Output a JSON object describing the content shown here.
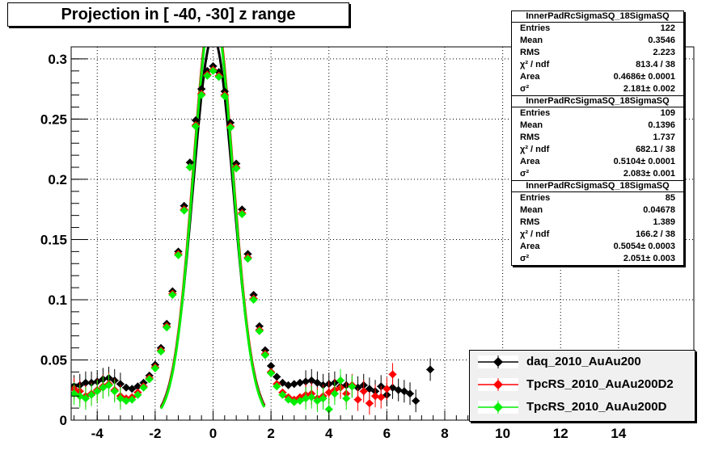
{
  "title": "Projection in [ -40, -30] z range",
  "chart_data": {
    "type": "scatter",
    "title": "Projection in [ -40, -30] z range",
    "xlabel": "",
    "ylabel": "",
    "xlim": [
      -4.9,
      16.6
    ],
    "ylim": [
      0,
      0.31
    ],
    "x_ticks": [
      -4,
      -2,
      0,
      2,
      4,
      6,
      8,
      10,
      12,
      14
    ],
    "y_ticks": [
      0,
      0.05,
      0.1,
      0.15,
      0.2,
      0.25,
      0.3
    ],
    "x_tick_labels": [
      "-4",
      "-2",
      "0",
      "2",
      "4",
      "6",
      "8",
      "10",
      "12",
      "14"
    ],
    "y_tick_labels": [
      "0",
      "0.05",
      "0.1",
      "0.15",
      "0.2",
      "0.25",
      "0.3"
    ],
    "grid": true,
    "legend_position": "bottom-right",
    "series": [
      {
        "name": "daq_2010_AuAu200",
        "color": "#000000",
        "x": [
          -4.8,
          -4.6,
          -4.4,
          -4.2,
          -4.0,
          -3.8,
          -3.6,
          -3.4,
          -3.2,
          -3.0,
          -2.8,
          -2.6,
          -2.4,
          -2.2,
          -2.0,
          -1.8,
          -1.6,
          -1.4,
          -1.2,
          -1.0,
          -0.8,
          -0.6,
          -0.4,
          -0.2,
          0.0,
          0.2,
          0.4,
          0.6,
          0.8,
          1.0,
          1.2,
          1.4,
          1.6,
          1.8,
          2.0,
          2.2,
          2.4,
          2.6,
          2.8,
          3.0,
          3.2,
          3.4,
          3.6,
          3.8,
          4.0,
          4.2,
          4.4,
          4.6,
          4.8,
          5.0,
          5.2,
          5.4,
          5.6,
          5.8,
          6.0,
          6.2,
          6.4,
          6.6,
          6.8,
          7.0,
          7.5
        ],
        "y": [
          0.028,
          0.029,
          0.031,
          0.031,
          0.032,
          0.034,
          0.035,
          0.033,
          0.03,
          0.027,
          0.026,
          0.028,
          0.031,
          0.037,
          0.046,
          0.06,
          0.08,
          0.107,
          0.14,
          0.178,
          0.214,
          0.249,
          0.275,
          0.29,
          0.294,
          0.289,
          0.273,
          0.247,
          0.213,
          0.175,
          0.138,
          0.104,
          0.078,
          0.058,
          0.045,
          0.036,
          0.031,
          0.029,
          0.03,
          0.031,
          0.032,
          0.033,
          0.031,
          0.029,
          0.03,
          0.031,
          0.028,
          0.029,
          0.028,
          0.027,
          0.029,
          0.026,
          0.024,
          0.028,
          0.021,
          0.027,
          0.025,
          0.024,
          0.022,
          0.016,
          0.042
        ]
      },
      {
        "name": "TpcRS_2010_AuAu200D2",
        "color": "#ff0000",
        "x": [
          -4.8,
          -4.6,
          -4.4,
          -4.2,
          -4.0,
          -3.8,
          -3.6,
          -3.4,
          -3.2,
          -3.0,
          -2.8,
          -2.6,
          -2.4,
          -2.2,
          -2.0,
          -1.8,
          -1.6,
          -1.4,
          -1.2,
          -1.0,
          -0.8,
          -0.6,
          -0.4,
          -0.2,
          0.0,
          0.2,
          0.4,
          0.6,
          0.8,
          1.0,
          1.2,
          1.4,
          1.6,
          1.8,
          2.0,
          2.2,
          2.4,
          2.6,
          2.8,
          3.0,
          3.2,
          3.4,
          3.6,
          3.8,
          4.0,
          4.2,
          4.4,
          4.6,
          4.8,
          5.0,
          5.2,
          5.4,
          5.6,
          5.8,
          6.0,
          6.2
        ],
        "y": [
          0.026,
          0.024,
          0.02,
          0.022,
          0.025,
          0.028,
          0.03,
          0.025,
          0.02,
          0.018,
          0.019,
          0.023,
          0.028,
          0.035,
          0.044,
          0.058,
          0.078,
          0.105,
          0.138,
          0.175,
          0.21,
          0.245,
          0.271,
          0.287,
          0.291,
          0.286,
          0.27,
          0.244,
          0.21,
          0.172,
          0.135,
          0.101,
          0.075,
          0.055,
          0.04,
          0.03,
          0.023,
          0.019,
          0.017,
          0.019,
          0.021,
          0.022,
          0.018,
          0.02,
          0.023,
          0.025,
          0.027,
          0.022,
          0.029,
          0.017,
          0.024,
          0.014,
          0.02,
          0.019,
          0.026,
          0.038
        ]
      },
      {
        "name": "TpcRS_2010_AuAu200D",
        "color": "#00ee00",
        "x": [
          -4.8,
          -4.6,
          -4.4,
          -4.2,
          -4.0,
          -3.8,
          -3.6,
          -3.4,
          -3.2,
          -3.0,
          -2.8,
          -2.6,
          -2.4,
          -2.2,
          -2.0,
          -1.8,
          -1.6,
          -1.4,
          -1.2,
          -1.0,
          -0.8,
          -0.6,
          -0.4,
          -0.2,
          0.0,
          0.2,
          0.4,
          0.6,
          0.8,
          1.0,
          1.2,
          1.4,
          1.6,
          1.8,
          2.0,
          2.2,
          2.4,
          2.6,
          2.8,
          3.0,
          3.2,
          3.4,
          3.6,
          3.8,
          4.0,
          4.2,
          4.4,
          4.6,
          4.8
        ],
        "y": [
          0.022,
          0.02,
          0.018,
          0.021,
          0.024,
          0.027,
          0.029,
          0.024,
          0.018,
          0.016,
          0.017,
          0.021,
          0.027,
          0.034,
          0.043,
          0.057,
          0.077,
          0.104,
          0.137,
          0.174,
          0.21,
          0.244,
          0.27,
          0.286,
          0.29,
          0.285,
          0.269,
          0.243,
          0.209,
          0.171,
          0.134,
          0.1,
          0.074,
          0.054,
          0.039,
          0.028,
          0.021,
          0.017,
          0.015,
          0.016,
          0.018,
          0.019,
          0.016,
          0.018,
          0.009,
          0.022,
          0.033,
          0.018,
          0.028
        ]
      }
    ],
    "fits": [
      {
        "series": "daq_2010_AuAu200",
        "color": "#000000",
        "area": 0.4686,
        "sigma": 2.181
      },
      {
        "series": "TpcRS_2010_AuAu200D2",
        "color": "#ff0000",
        "area": 0.5104,
        "sigma": 2.083
      },
      {
        "series": "TpcRS_2010_AuAu200D",
        "color": "#00ee00",
        "area": 0.5054,
        "sigma": 2.051
      }
    ]
  },
  "stat_boxes": [
    {
      "name": "InnerPadRcSigmaSQ_18SigmaSQ",
      "rows": [
        {
          "k": "Entries",
          "v": "122"
        },
        {
          "k": "Mean",
          "v": "0.3546"
        },
        {
          "k": "RMS",
          "v": "2.223"
        },
        {
          "k": "χ² / ndf",
          "v": "813.4 / 38"
        },
        {
          "k": "Area",
          "v": "0.4686± 0.0001"
        },
        {
          "k": "σ²",
          "v": "2.181± 0.002"
        }
      ]
    },
    {
      "name": "InnerPadRcSigmaSQ_18SigmaSQ",
      "rows": [
        {
          "k": "Entries",
          "v": "109"
        },
        {
          "k": "Mean",
          "v": "0.1396"
        },
        {
          "k": "RMS",
          "v": "1.737"
        },
        {
          "k": "χ² / ndf",
          "v": "682.1 / 38"
        },
        {
          "k": "Area",
          "v": "0.5104± 0.0001"
        },
        {
          "k": "σ²",
          "v": "2.083± 0.001"
        }
      ]
    },
    {
      "name": "InnerPadRcSigmaSQ_18SigmaSQ",
      "rows": [
        {
          "k": "Entries",
          "v": "85"
        },
        {
          "k": "Mean",
          "v": "0.04678"
        },
        {
          "k": "RMS",
          "v": "1.389"
        },
        {
          "k": "χ² / ndf",
          "v": "166.2 / 38"
        },
        {
          "k": "Area",
          "v": "0.5054± 0.0003"
        },
        {
          "k": "σ²",
          "v": "2.051± 0.003"
        }
      ]
    }
  ],
  "legend": [
    {
      "label": "daq_2010_AuAu200",
      "color": "#000000"
    },
    {
      "label": "TpcRS_2010_AuAu200D2",
      "color": "#ff0000"
    },
    {
      "label": "TpcRS_2010_AuAu200D",
      "color": "#00ee00"
    }
  ]
}
